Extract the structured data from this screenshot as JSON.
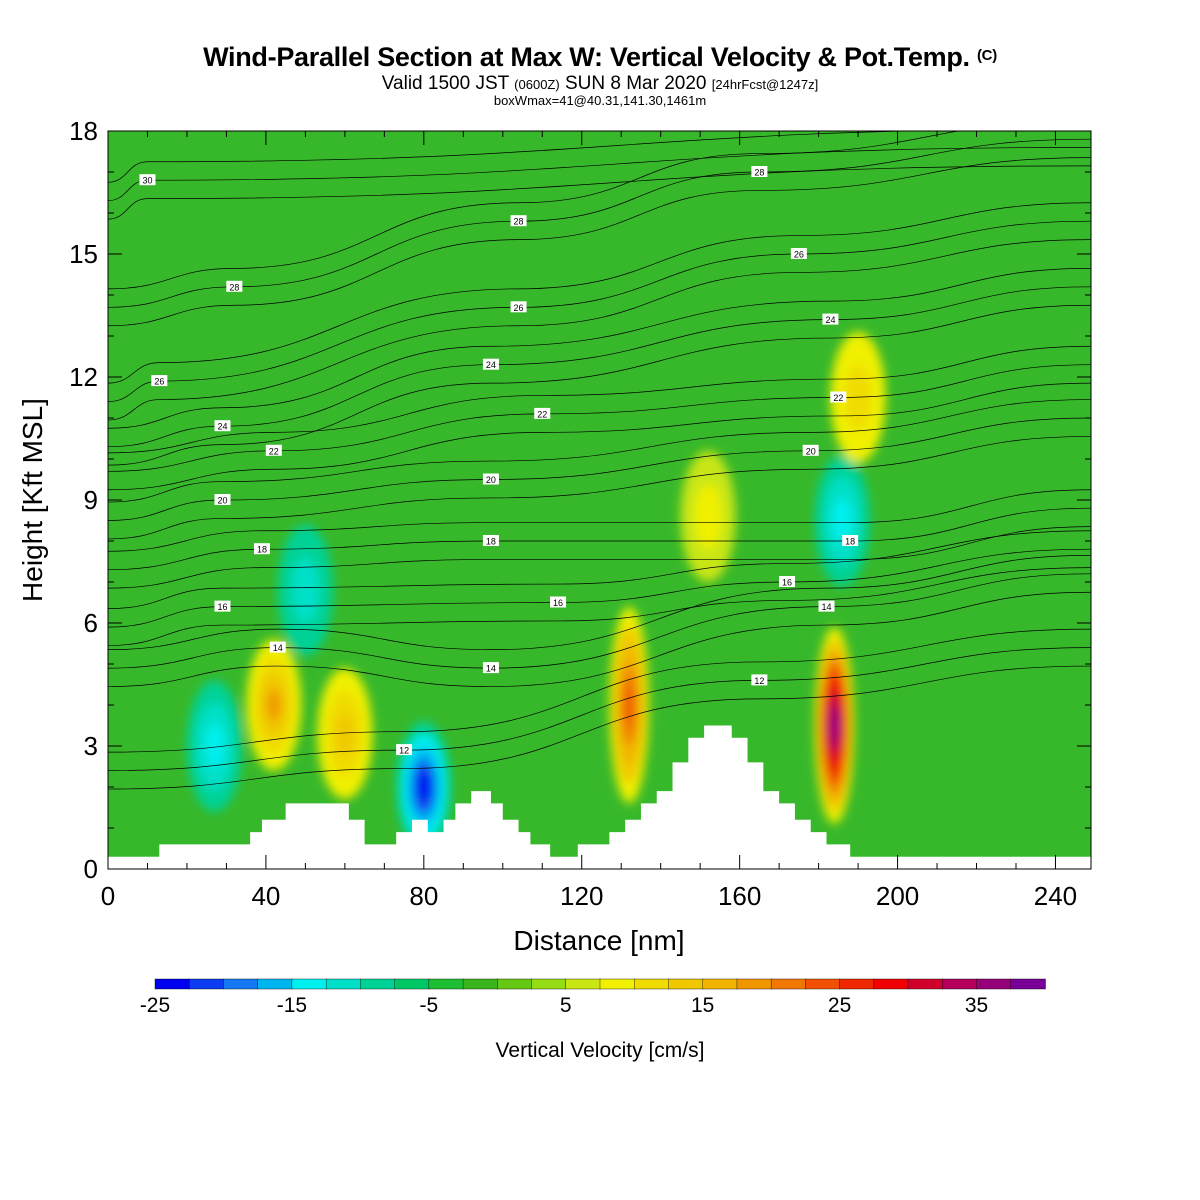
{
  "title": {
    "main": "Wind-Parallel Section at Max W: Vertical Velocity & Pot.Temp.",
    "copyright": "(C)",
    "subtitle_valid": "Valid 1500 JST",
    "subtitle_z": "(0600Z)",
    "subtitle_date": "SUN 8 Mar 2020",
    "subtitle_fcst": "[24hrFcst@1247z]",
    "box_info": "boxWmax=41@40.31,141.30,1461m"
  },
  "colors": {
    "green": "#37b82a",
    "terrain": "#ffffff",
    "contour": "#000000"
  },
  "chart_data": {
    "type": "heatmap",
    "xlabel": "Distance [nm]",
    "ylabel": "Height [Kft MSL]",
    "xlim": [
      0,
      249
    ],
    "ylim": [
      0,
      18
    ],
    "xticks": [
      0,
      40,
      80,
      120,
      160,
      200,
      240
    ],
    "yticks": [
      0,
      3,
      6,
      9,
      12,
      15,
      18
    ],
    "colorbar": {
      "label": "Vertical Velocity [cm/s]",
      "min": -25,
      "max": 40,
      "step": 2.5,
      "tick_values": [
        -25,
        -15,
        -5,
        5,
        15,
        25,
        35
      ],
      "tick_labels": [
        "-25",
        "-15",
        "-5",
        "5",
        "15",
        "25",
        "35"
      ],
      "colors": [
        "#0000f0",
        "#0a3cf0",
        "#1478f0",
        "#00b4f0",
        "#00f0f0",
        "#00e0c8",
        "#00d296",
        "#00c864",
        "#1ebe32",
        "#3cb41e",
        "#64c814",
        "#96dc14",
        "#c8e614",
        "#f0f000",
        "#f0dc00",
        "#f0c800",
        "#f0b400",
        "#f09600",
        "#f07800",
        "#f05000",
        "#f02800",
        "#f00000",
        "#d2002d",
        "#b4005a",
        "#960078",
        "#780096"
      ]
    },
    "features": [
      {
        "name": "downdraft",
        "x": 80,
        "y": 2.0,
        "w": -25
      },
      {
        "name": "downdraft",
        "x": 27,
        "y": 3.0,
        "w": -13
      },
      {
        "name": "downdraft",
        "x": 186,
        "y": 8.5,
        "w": -15
      },
      {
        "name": "downdraft",
        "x": 50,
        "y": 6.8,
        "w": -11
      },
      {
        "name": "updraft",
        "x": 184,
        "y": 3.5,
        "w": 41
      },
      {
        "name": "updraft",
        "x": 132,
        "y": 4.0,
        "w": 24
      },
      {
        "name": "updraft",
        "x": 42,
        "y": 4.0,
        "w": 18
      },
      {
        "name": "updraft",
        "x": 60,
        "y": 3.3,
        "w": 14
      },
      {
        "name": "updraft",
        "x": 152,
        "y": 8.6,
        "w": 9
      },
      {
        "name": "updraft",
        "x": 190,
        "y": 11.5,
        "w": 12
      }
    ],
    "terrain": [
      [
        0,
        0.3
      ],
      [
        13,
        0.3
      ],
      [
        13,
        0.6
      ],
      [
        36,
        0.6
      ],
      [
        36,
        0.9
      ],
      [
        39,
        0.9
      ],
      [
        39,
        1.2
      ],
      [
        45,
        1.2
      ],
      [
        45,
        1.6
      ],
      [
        61,
        1.6
      ],
      [
        61,
        1.2
      ],
      [
        65,
        1.2
      ],
      [
        65,
        0.6
      ],
      [
        73,
        0.6
      ],
      [
        73,
        0.9
      ],
      [
        77,
        0.9
      ],
      [
        77,
        1.2
      ],
      [
        81,
        1.2
      ],
      [
        81,
        0.9
      ],
      [
        85,
        0.9
      ],
      [
        85,
        1.2
      ],
      [
        88,
        1.2
      ],
      [
        88,
        1.6
      ],
      [
        92,
        1.6
      ],
      [
        92,
        1.9
      ],
      [
        97,
        1.9
      ],
      [
        97,
        1.6
      ],
      [
        100,
        1.6
      ],
      [
        100,
        1.2
      ],
      [
        104,
        1.2
      ],
      [
        104,
        0.9
      ],
      [
        107,
        0.9
      ],
      [
        107,
        0.6
      ],
      [
        112,
        0.6
      ],
      [
        112,
        0.3
      ],
      [
        119,
        0.3
      ],
      [
        119,
        0.6
      ],
      [
        127,
        0.6
      ],
      [
        127,
        0.9
      ],
      [
        131,
        0.9
      ],
      [
        131,
        1.2
      ],
      [
        135,
        1.2
      ],
      [
        135,
        1.6
      ],
      [
        139,
        1.6
      ],
      [
        139,
        1.9
      ],
      [
        143,
        1.9
      ],
      [
        143,
        2.6
      ],
      [
        147,
        2.6
      ],
      [
        147,
        3.2
      ],
      [
        151,
        3.2
      ],
      [
        151,
        3.5
      ],
      [
        158,
        3.5
      ],
      [
        158,
        3.2
      ],
      [
        162,
        3.2
      ],
      [
        162,
        2.6
      ],
      [
        166,
        2.6
      ],
      [
        166,
        1.9
      ],
      [
        170,
        1.9
      ],
      [
        170,
        1.6
      ],
      [
        174,
        1.6
      ],
      [
        174,
        1.2
      ],
      [
        178,
        1.2
      ],
      [
        178,
        0.9
      ],
      [
        182,
        0.9
      ],
      [
        182,
        0.6
      ],
      [
        188,
        0.6
      ],
      [
        188,
        0.3
      ],
      [
        249,
        0.3
      ]
    ],
    "contour_labels": [
      {
        "text": "30",
        "x": 10,
        "y": 16.8
      },
      {
        "text": "28",
        "x": 32,
        "y": 14.2
      },
      {
        "text": "28",
        "x": 104,
        "y": 15.8
      },
      {
        "text": "28",
        "x": 165,
        "y": 17.0
      },
      {
        "text": "26",
        "x": 13,
        "y": 11.9
      },
      {
        "text": "26",
        "x": 104,
        "y": 13.7
      },
      {
        "text": "26",
        "x": 175,
        "y": 15.0
      },
      {
        "text": "24",
        "x": 29,
        "y": 10.8
      },
      {
        "text": "24",
        "x": 97,
        "y": 12.3
      },
      {
        "text": "24",
        "x": 183,
        "y": 13.4
      },
      {
        "text": "22",
        "x": 42,
        "y": 10.2
      },
      {
        "text": "22",
        "x": 110,
        "y": 11.1
      },
      {
        "text": "22",
        "x": 185,
        "y": 11.5
      },
      {
        "text": "20",
        "x": 29,
        "y": 9.0
      },
      {
        "text": "20",
        "x": 97,
        "y": 9.5
      },
      {
        "text": "20",
        "x": 178,
        "y": 10.2
      },
      {
        "text": "18",
        "x": 39,
        "y": 7.8
      },
      {
        "text": "18",
        "x": 97,
        "y": 8.0
      },
      {
        "text": "18",
        "x": 188,
        "y": 8.0
      },
      {
        "text": "16",
        "x": 29,
        "y": 6.4
      },
      {
        "text": "16",
        "x": 114,
        "y": 6.5
      },
      {
        "text": "16",
        "x": 172,
        "y": 7.0
      },
      {
        "text": "14",
        "x": 43,
        "y": 5.4
      },
      {
        "text": "14",
        "x": 97,
        "y": 4.9
      },
      {
        "text": "14",
        "x": 182,
        "y": 6.4
      },
      {
        "text": "12",
        "x": 75,
        "y": 2.9
      },
      {
        "text": "12",
        "x": 165,
        "y": 4.6
      }
    ]
  }
}
